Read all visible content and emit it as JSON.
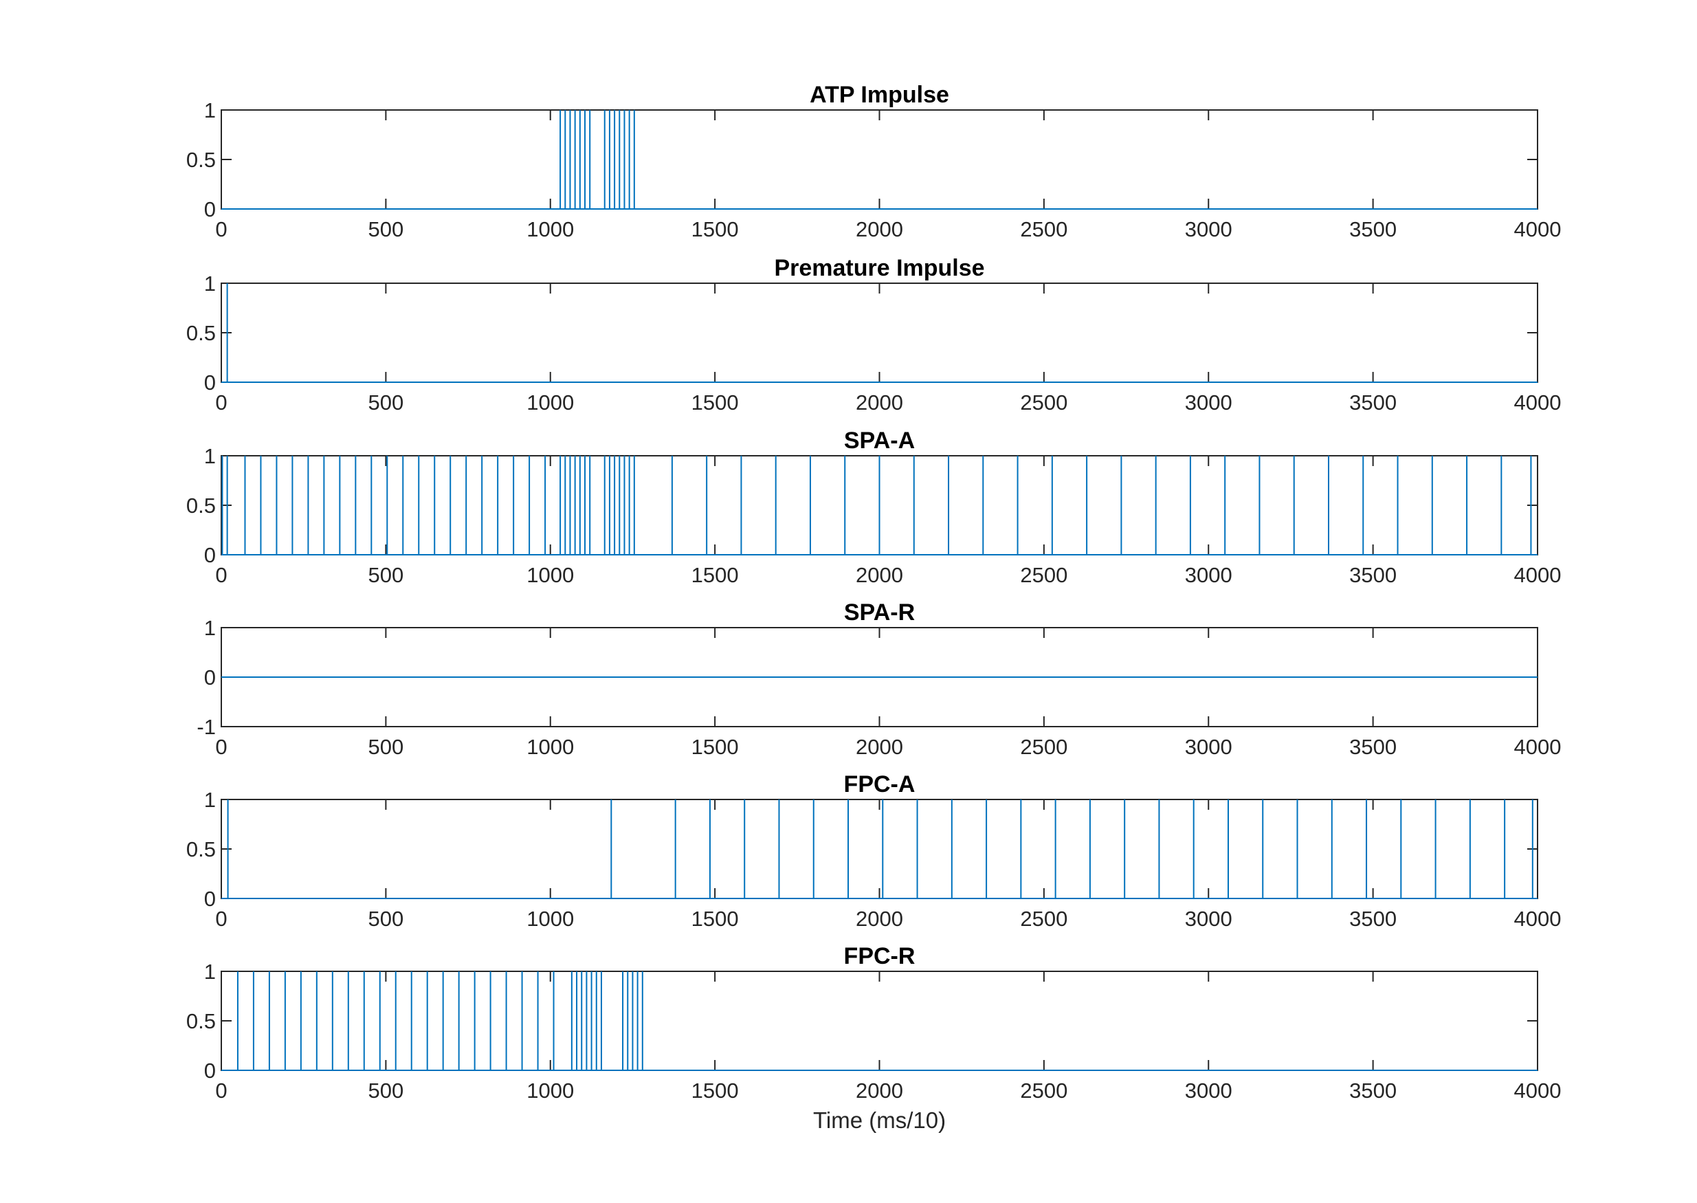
{
  "chart_data": [
    {
      "type": "line",
      "title": "ATP Impulse",
      "xlabel": "",
      "ylabel": "",
      "xlim": [
        0,
        4000
      ],
      "ylim": [
        0,
        1
      ],
      "xticks": [
        0,
        500,
        1000,
        1500,
        2000,
        2500,
        3000,
        3500,
        4000
      ],
      "yticks": [
        0,
        0.5,
        1
      ],
      "color": "#0072BD",
      "impulse_times": [
        1030,
        1045,
        1060,
        1075,
        1090,
        1105,
        1120,
        1165,
        1180,
        1195,
        1210,
        1225,
        1240,
        1255
      ]
    },
    {
      "type": "line",
      "title": "Premature Impulse",
      "xlabel": "",
      "ylabel": "",
      "xlim": [
        0,
        4000
      ],
      "ylim": [
        0,
        1
      ],
      "xticks": [
        0,
        500,
        1000,
        1500,
        2000,
        2500,
        3000,
        3500,
        4000
      ],
      "yticks": [
        0,
        0.5,
        1
      ],
      "color": "#0072BD",
      "impulse_times": [
        18
      ]
    },
    {
      "type": "line",
      "title": "SPA-A",
      "xlabel": "",
      "ylabel": "",
      "xlim": [
        0,
        4000
      ],
      "ylim": [
        0,
        1
      ],
      "xticks": [
        0,
        500,
        1000,
        1500,
        2000,
        2500,
        3000,
        3500,
        4000
      ],
      "yticks": [
        0,
        0.5,
        1
      ],
      "color": "#0072BD",
      "impulse_times": [
        3,
        18,
        72,
        120,
        168,
        216,
        264,
        312,
        360,
        408,
        456,
        504,
        552,
        600,
        648,
        696,
        744,
        792,
        840,
        888,
        936,
        984,
        1030,
        1045,
        1060,
        1075,
        1090,
        1105,
        1120,
        1165,
        1180,
        1195,
        1210,
        1225,
        1240,
        1255,
        1370,
        1475,
        1580,
        1685,
        1790,
        1895,
        2000,
        2105,
        2210,
        2315,
        2420,
        2525,
        2630,
        2735,
        2840,
        2945,
        3050,
        3155,
        3260,
        3365,
        3470,
        3575,
        3680,
        3785,
        3890,
        3980
      ]
    },
    {
      "type": "line",
      "title": "SPA-R",
      "xlabel": "",
      "ylabel": "",
      "xlim": [
        0,
        4000
      ],
      "ylim": [
        -1,
        1
      ],
      "xticks": [
        0,
        500,
        1000,
        1500,
        2000,
        2500,
        3000,
        3500,
        4000
      ],
      "yticks": [
        -1,
        0,
        1
      ],
      "color": "#0072BD",
      "impulse_times": []
    },
    {
      "type": "line",
      "title": "FPC-A",
      "xlabel": "",
      "ylabel": "",
      "xlim": [
        0,
        4000
      ],
      "ylim": [
        0,
        1
      ],
      "xticks": [
        0,
        500,
        1000,
        1500,
        2000,
        2500,
        3000,
        3500,
        4000
      ],
      "yticks": [
        0,
        0.5,
        1
      ],
      "color": "#0072BD",
      "impulse_times": [
        20,
        1185,
        1380,
        1485,
        1590,
        1695,
        1800,
        1905,
        2010,
        2115,
        2220,
        2325,
        2430,
        2535,
        2640,
        2745,
        2850,
        2955,
        3060,
        3165,
        3270,
        3375,
        3480,
        3585,
        3690,
        3795,
        3900,
        3985
      ]
    },
    {
      "type": "line",
      "title": "FPC-R",
      "xlabel": "Time (ms/10)",
      "ylabel": "",
      "xlim": [
        0,
        4000
      ],
      "ylim": [
        0,
        1
      ],
      "xticks": [
        0,
        500,
        1000,
        1500,
        2000,
        2500,
        3000,
        3500,
        4000
      ],
      "yticks": [
        0,
        0.5,
        1
      ],
      "color": "#0072BD",
      "impulse_times": [
        50,
        98,
        146,
        194,
        242,
        290,
        338,
        386,
        434,
        482,
        530,
        578,
        626,
        674,
        722,
        770,
        818,
        866,
        914,
        962,
        1010,
        1065,
        1080,
        1095,
        1110,
        1125,
        1140,
        1155,
        1220,
        1235,
        1250,
        1265,
        1280
      ]
    }
  ]
}
